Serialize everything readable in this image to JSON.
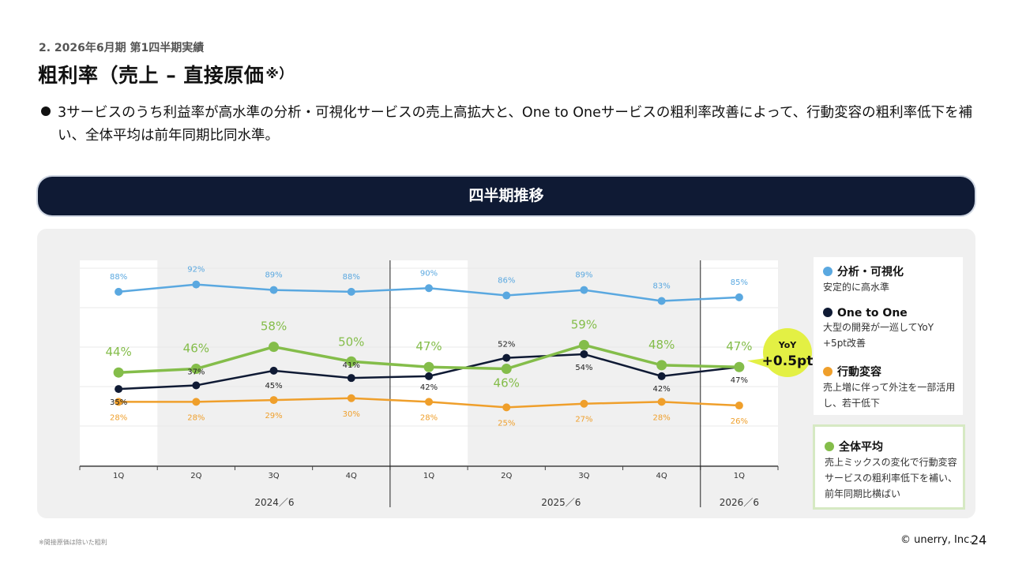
{
  "header": {
    "section": "2. 2026年6月期 第1四半期実績",
    "title": "粗利率（売上 – 直接原価",
    "title_mark": "※）"
  },
  "bullet": "3サービスのうち利益率が高水準の分析・可視化サービスの売上高拡大と、One to Oneサービスの粗利率改善によって、行動変容の粗利率低下を補い、全体平均は前年同期比同水準。",
  "banner": {
    "label": "四半期推移"
  },
  "legend": [
    {
      "title": "分析・可視化",
      "desc": "安定的に高水準",
      "color": "#5aa8e0"
    },
    {
      "title": "One to One",
      "desc": "大型の開発が一巡してYoY +5pt改善",
      "color": "#0f1a34"
    },
    {
      "title": "行動変容",
      "desc": "売上増に伴って外注を一部活用し、若干低下",
      "color": "#ef9f2b"
    },
    {
      "title": "全体平均",
      "desc": "売上ミックスの変化で行動変容サービスの粗利率低下を補い、前年同期比横ばい",
      "color": "#84bd4a"
    }
  ],
  "chart_data": {
    "type": "line",
    "categories": [
      "1Q",
      "2Q",
      "3Q",
      "4Q",
      "1Q",
      "2Q",
      "3Q",
      "4Q",
      "1Q"
    ],
    "period_labels": [
      "2024／6",
      "2025／6",
      "2026／6"
    ],
    "ylim": [
      0,
      100
    ],
    "series": [
      {
        "name": "分析・可視化",
        "color": "#5aa8e0",
        "values": [
          88,
          92,
          89,
          88,
          90,
          86,
          89,
          83,
          85
        ],
        "labels": [
          "88%",
          "92%",
          "89%",
          "88%",
          "90%",
          "86%",
          "89%",
          "83%",
          "85%"
        ]
      },
      {
        "name": "One to One",
        "color": "#0f1a34",
        "values": [
          35,
          37,
          45,
          41,
          42,
          52,
          54,
          42,
          47
        ],
        "labels": [
          "35%",
          "37%",
          "45%",
          "41%",
          "42%",
          "52%",
          "54%",
          "42%",
          "47%"
        ]
      },
      {
        "name": "行動変容",
        "color": "#ef9f2b",
        "values": [
          28,
          28,
          29,
          30,
          28,
          25,
          27,
          28,
          26
        ],
        "labels": [
          "28%",
          "28%",
          "29%",
          "30%",
          "28%",
          "25%",
          "27%",
          "28%",
          "26%"
        ]
      },
      {
        "name": "全体平均",
        "color": "#84bd4a",
        "values": [
          44,
          46,
          58,
          50,
          47,
          46,
          59,
          48,
          47
        ],
        "labels": [
          "44%",
          "46%",
          "58%",
          "50%",
          "47%",
          "46%",
          "59%",
          "48%",
          "47%"
        ]
      }
    ],
    "callout": {
      "line1": "YoY",
      "line2": "+0.5pt"
    }
  },
  "footer": {
    "footnote": "※間接原価は除いた粗利",
    "company": "© unerry, Inc.",
    "page_number": "24"
  }
}
